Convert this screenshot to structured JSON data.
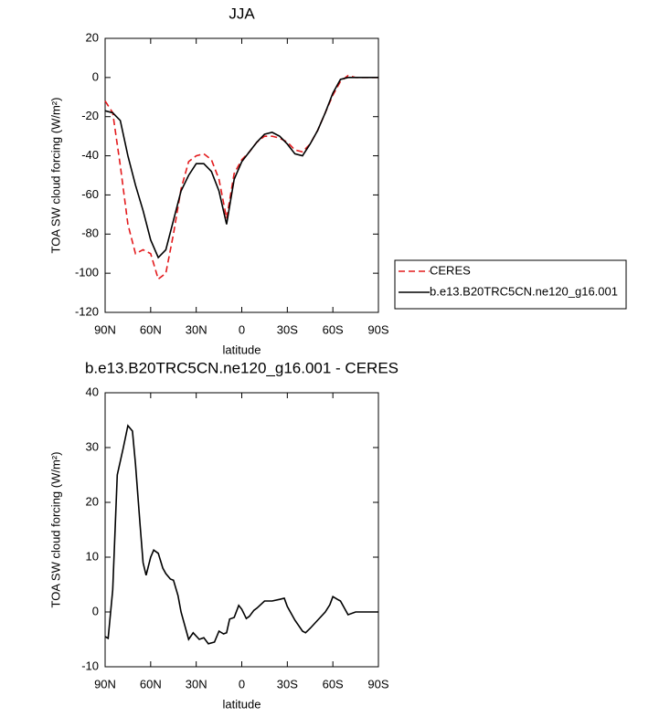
{
  "chart_data": [
    {
      "type": "line",
      "title": "JJA",
      "xlabel": "latitude",
      "ylabel": "TOA SW cloud forcing (W/m²)",
      "x": [
        90,
        85,
        80,
        75,
        70,
        65,
        60,
        55,
        50,
        45,
        40,
        35,
        30,
        25,
        20,
        15,
        10,
        5,
        0,
        -5,
        -10,
        -15,
        -20,
        -25,
        -30,
        -35,
        -40,
        -45,
        -50,
        -55,
        -60,
        -65,
        -70,
        -75,
        -80,
        -85,
        -90
      ],
      "series": [
        {
          "name": "CERES",
          "color": "#e31a1c",
          "dash": true,
          "values": [
            -12,
            -18,
            -45,
            -75,
            -90,
            -88,
            -90,
            -103,
            -100,
            -80,
            -57,
            -43,
            -40,
            -39,
            -42,
            -52,
            -72,
            -49,
            -42,
            -38,
            -33,
            -30,
            -30,
            -31,
            -33,
            -37,
            -38,
            -34,
            -27,
            -18,
            -9,
            -2,
            1,
            0,
            0,
            0,
            0
          ]
        },
        {
          "name": "b.e13.B20TRC5CN.ne120_g16.001",
          "color": "#000000",
          "dash": false,
          "values": [
            -17,
            -18,
            -22,
            -40,
            -55,
            -68,
            -83,
            -92,
            -88,
            -73,
            -58,
            -50,
            -44,
            -44,
            -48,
            -58,
            -75,
            -52,
            -43,
            -38,
            -33,
            -29,
            -28,
            -30,
            -34,
            -39,
            -40,
            -34,
            -27,
            -18,
            -8,
            -1,
            0,
            0,
            0,
            0,
            0
          ]
        }
      ],
      "xlim": [
        90,
        -90
      ],
      "xticks": [
        {
          "value": 90,
          "label": "90N"
        },
        {
          "value": 60,
          "label": "60N"
        },
        {
          "value": 30,
          "label": "30N"
        },
        0,
        {
          "value": -30,
          "label": "30S"
        },
        {
          "value": -60,
          "label": "60S"
        },
        {
          "value": -90,
          "label": "90S"
        }
      ],
      "ylim": [
        -120,
        20
      ],
      "yticks": [
        -120,
        -100,
        -80,
        -60,
        -40,
        -20,
        0,
        20
      ],
      "legend": "right"
    },
    {
      "type": "line",
      "title": "b.e13.B20TRC5CN.ne120_g16.001 - CERES",
      "xlabel": "latitude",
      "ylabel": "TOA SW cloud forcing (W/m²)",
      "x": [
        90,
        88,
        85,
        82,
        78,
        75,
        72,
        70,
        67,
        65,
        63,
        60,
        58,
        55,
        52,
        50,
        47,
        45,
        42,
        40,
        35,
        32,
        28,
        25,
        22,
        18,
        15,
        12,
        10,
        8,
        5,
        2,
        0,
        -3,
        -5,
        -8,
        -10,
        -15,
        -20,
        -25,
        -28,
        -30,
        -35,
        -40,
        -42,
        -45,
        -50,
        -55,
        -58,
        -60,
        -63,
        -65,
        -70,
        -75,
        -80,
        -90
      ],
      "series": [
        {
          "color": "#000000",
          "dash": false,
          "values": [
            -4.5,
            -4.8,
            4,
            25,
            30,
            34,
            33,
            27,
            16,
            9,
            6.7,
            10,
            11.3,
            10.7,
            8,
            7,
            6,
            5.8,
            3,
            0,
            -5,
            -3.8,
            -5,
            -4.7,
            -5.8,
            -5.5,
            -3.5,
            -4,
            -3.8,
            -1.3,
            -1,
            1.2,
            0.5,
            -1.2,
            -0.8,
            0.3,
            0.7,
            2,
            2,
            2.3,
            2.5,
            1,
            -1.5,
            -3.5,
            -3.8,
            -3,
            -1.5,
            0,
            1.3,
            2.8,
            2.3,
            2,
            -0.5,
            0,
            0,
            0
          ]
        }
      ],
      "xlim": [
        90,
        -90
      ],
      "xticks": [
        {
          "value": 90,
          "label": "90N"
        },
        {
          "value": 60,
          "label": "60N"
        },
        {
          "value": 30,
          "label": "30N"
        },
        0,
        {
          "value": -30,
          "label": "30S"
        },
        {
          "value": -60,
          "label": "60S"
        },
        {
          "value": -90,
          "label": "90S"
        }
      ],
      "ylim": [
        -10,
        40
      ],
      "yticks": [
        -10,
        0,
        10,
        20,
        30,
        40
      ]
    }
  ]
}
